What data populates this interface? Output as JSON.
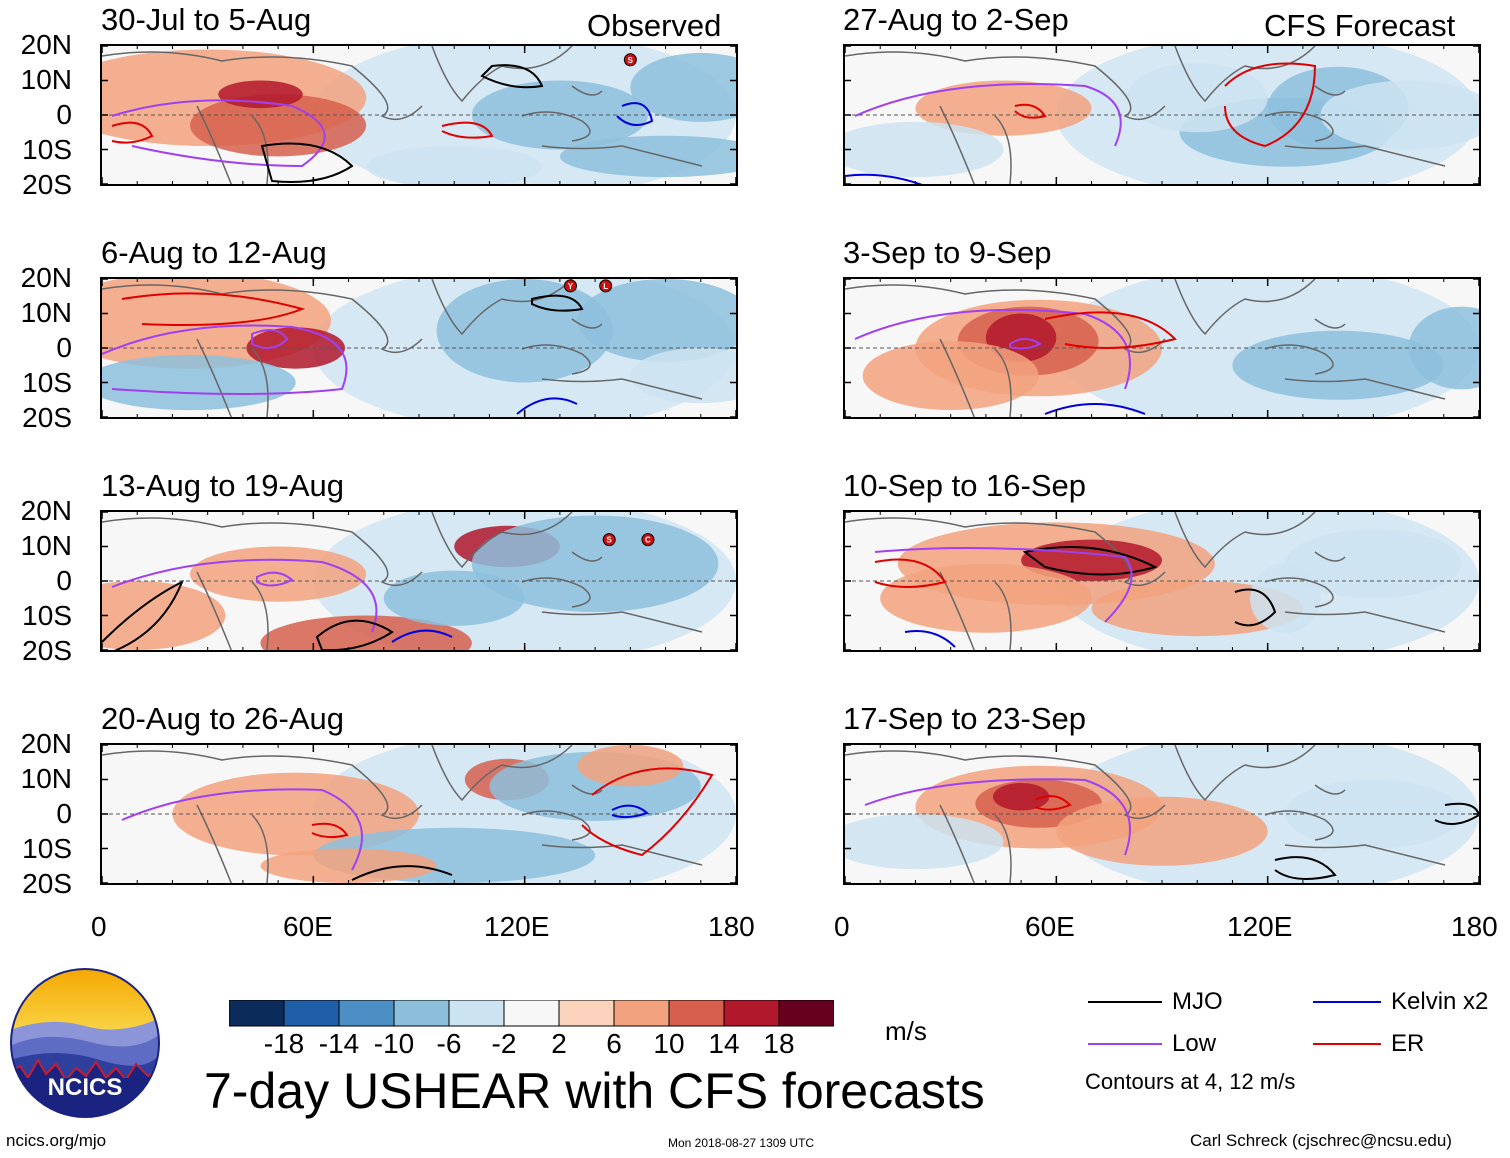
{
  "observed_label": "Observed",
  "forecast_label": "CFS Forecast",
  "panels_observed": [
    {
      "title": "30-Jul to 5-Aug"
    },
    {
      "title": "6-Aug to 12-Aug"
    },
    {
      "title": "13-Aug to 19-Aug"
    },
    {
      "title": "20-Aug to 26-Aug"
    }
  ],
  "panels_forecast": [
    {
      "title": "27-Aug to 2-Sep"
    },
    {
      "title": "3-Sep to 9-Sep"
    },
    {
      "title": "10-Sep to 16-Sep"
    },
    {
      "title": "17-Sep to 23-Sep"
    }
  ],
  "lat_labels": [
    "20N",
    "10N",
    "0",
    "10S",
    "20S"
  ],
  "lon_labels": [
    "0",
    "60E",
    "120E",
    "180"
  ],
  "storm_labels": [
    "S",
    "Y",
    "L",
    "S",
    "C"
  ],
  "colorbar": {
    "colors": [
      "#0b2c5a",
      "#1f5fa8",
      "#4b8fc4",
      "#8dbfdd",
      "#cce3f1",
      "#f7f7f7",
      "#fbd2bb",
      "#f2a27e",
      "#d6604d",
      "#b2182b",
      "#67001f"
    ],
    "tick_labels": [
      "-18",
      "-14",
      "-10",
      "-6",
      "-2",
      "2",
      "6",
      "10",
      "14",
      "18"
    ],
    "units": "m/s"
  },
  "legend": {
    "items": [
      {
        "label": "MJO",
        "color": "#000000"
      },
      {
        "label": "Kelvin x2",
        "color": "#0000dd"
      },
      {
        "label": "Low",
        "color": "#a040f0"
      },
      {
        "label": "ER",
        "color": "#e00000"
      }
    ],
    "note": "Contours at 4, 12 m/s"
  },
  "logo_text": "NCICS",
  "main_title": "7-day USHEAR with CFS forecasts",
  "footer": {
    "url": "ncics.org/mjo",
    "timestamp": "Mon 2018-08-27 1309 UTC",
    "credit": "Carl Schreck (cjschrec@ncsu.edu)"
  }
}
